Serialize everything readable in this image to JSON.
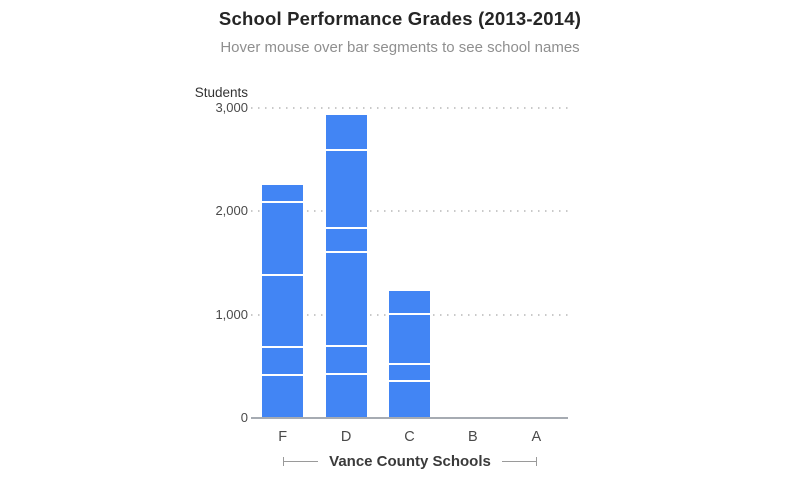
{
  "header": {
    "title": "School Performance Grades (2013-2014)",
    "subtitle": "Hover mouse over bar segments to see school names"
  },
  "axis": {
    "y_title": "Students",
    "x_categories": [
      "F",
      "D",
      "C",
      "B",
      "A"
    ]
  },
  "footer": {
    "label": "Vance County Schools"
  },
  "colors": {
    "bar": "#4285f4",
    "segment_separator": "#ffffff",
    "gridline": "#c9c9c9",
    "baseline": "#a6abb2",
    "title_text": "#252525",
    "subtitle_text": "#8f8f8f",
    "axis_text": "#4a4a4a",
    "footer_text": "#3a3a3a",
    "bracket_line": "#9a9a9a"
  },
  "chart_data": {
    "type": "bar",
    "stacked": true,
    "title": "School Performance Grades (2013-2014)",
    "subtitle": "Hover mouse over bar segments to see school names",
    "xlabel": "Vance County Schools",
    "ylabel": "Students",
    "ylim": [
      0,
      3000
    ],
    "yticks": [
      {
        "value": 0,
        "label": "0"
      },
      {
        "value": 1000,
        "label": "1,000"
      },
      {
        "value": 2000,
        "label": "2,000"
      },
      {
        "value": 3000,
        "label": "3,000"
      }
    ],
    "grid": "horizontal-dotted",
    "legend_position": "none",
    "categories": [
      "F",
      "D",
      "C",
      "B",
      "A"
    ],
    "stacks": [
      [
        430,
        270,
        695,
        705,
        155
      ],
      [
        440,
        265,
        910,
        230,
        760,
        325
      ],
      [
        370,
        160,
        490,
        210
      ],
      [],
      []
    ],
    "stack_totals": [
      2255,
      2930,
      1230,
      0,
      0
    ]
  }
}
